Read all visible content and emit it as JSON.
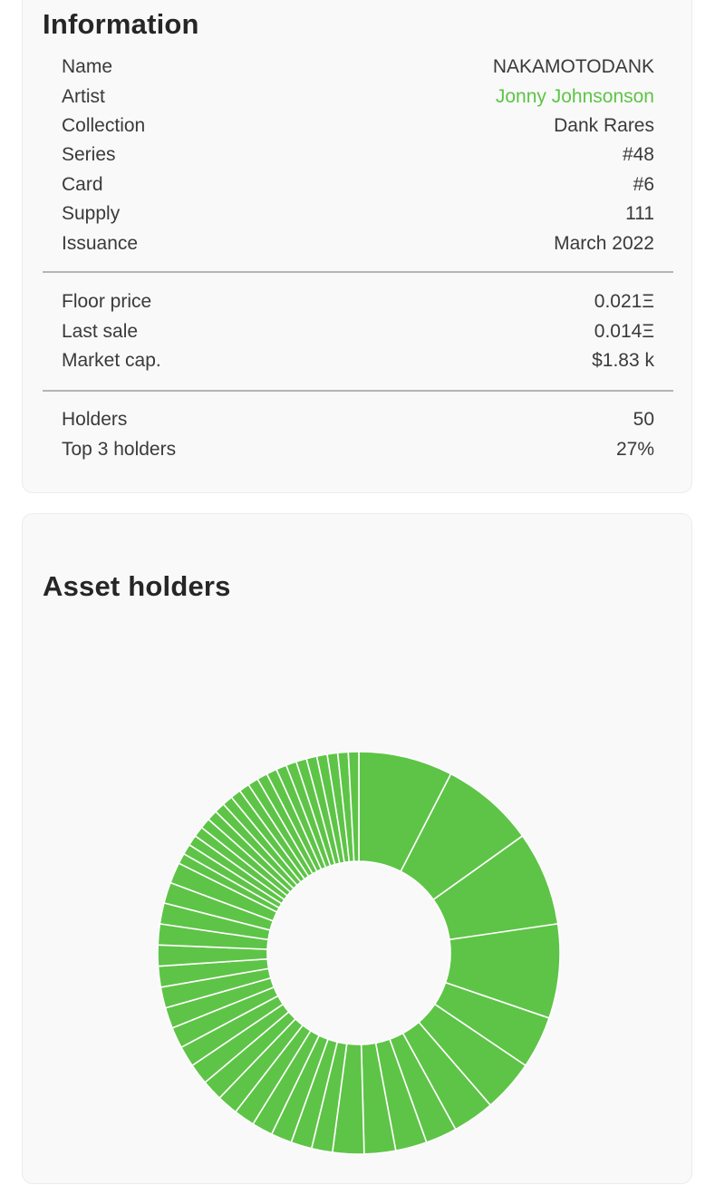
{
  "information": {
    "title": "Information",
    "details": [
      {
        "label": "Name",
        "value": "NAKAMOTODANK"
      },
      {
        "label": "Artist",
        "value": "Jonny Johnsonson",
        "link": true
      },
      {
        "label": "Collection",
        "value": "Dank Rares"
      },
      {
        "label": "Series",
        "value": "#48"
      },
      {
        "label": "Card",
        "value": "#6"
      },
      {
        "label": "Supply",
        "value": "111"
      },
      {
        "label": "Issuance",
        "value": "March 2022"
      }
    ],
    "market": [
      {
        "label": "Floor price",
        "value": "0.021Ξ"
      },
      {
        "label": "Last sale",
        "value": "0.014Ξ"
      },
      {
        "label": "Market cap.",
        "value": "$1.83 k"
      }
    ],
    "holders": [
      {
        "label": "Holders",
        "value": "50"
      },
      {
        "label": "Top 3 holders",
        "value": "27%"
      }
    ]
  },
  "asset_holders": {
    "title": "Asset holders"
  },
  "colors": {
    "accent": "#5ec447",
    "card_bg": "#f9f9f9",
    "divider": "#b5b5b5"
  },
  "chart_data": {
    "type": "pie",
    "style": "donut",
    "holders_count": 50,
    "slice_units": [
      9,
      9,
      9,
      9,
      5,
      5,
      4,
      3,
      3,
      3,
      3,
      2,
      2,
      2,
      2,
      2,
      2,
      2,
      2,
      2,
      2,
      2,
      2,
      2,
      2,
      2,
      2,
      2,
      2,
      1,
      1,
      1,
      1,
      1,
      1,
      1,
      1,
      1,
      1,
      1,
      1,
      1,
      1,
      1,
      1,
      1,
      1,
      1,
      1,
      1
    ],
    "color": "#5ec447",
    "separator_color": "#ffffff"
  }
}
